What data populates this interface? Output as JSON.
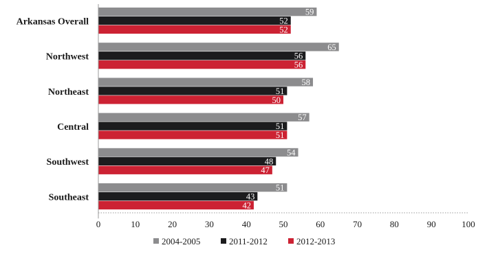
{
  "chart_data": {
    "type": "bar",
    "orientation": "horizontal",
    "categories": [
      "Arkansas Overall",
      "Northwest",
      "Northeast",
      "Central",
      "Southwest",
      "Southeast"
    ],
    "series": [
      {
        "name": "2004-2005",
        "color": "#8c8c8e",
        "values": [
          59,
          65,
          58,
          57,
          54,
          51
        ]
      },
      {
        "name": "2011-2012",
        "color": "#1c1c1e",
        "values": [
          52,
          56,
          51,
          51,
          48,
          43
        ]
      },
      {
        "name": "2012-2013",
        "color": "#cc2233",
        "values": [
          52,
          56,
          50,
          51,
          47,
          42
        ]
      }
    ],
    "xlim": [
      0,
      100
    ],
    "xticks": [
      0,
      10,
      20,
      30,
      40,
      50,
      60,
      70,
      80,
      90,
      100
    ],
    "grid": false,
    "legend_position": "bottom"
  }
}
